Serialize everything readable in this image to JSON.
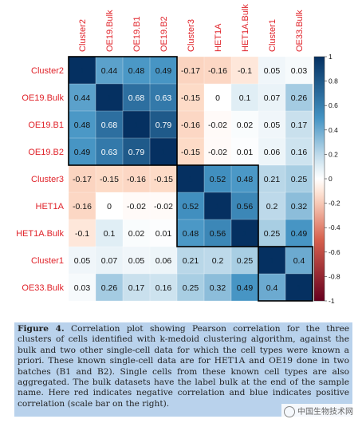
{
  "chart_data": {
    "type": "heatmap",
    "labels": [
      "Cluster2",
      "OE19.Bulk",
      "OE19.B1",
      "OE19.B2",
      "Cluster3",
      "HET1A",
      "HET1A.Bulk",
      "Cluster1",
      "OE33.Bulk"
    ],
    "matrix": [
      [
        1,
        0.44,
        0.48,
        0.49,
        -0.17,
        -0.16,
        -0.1,
        0.05,
        0.03
      ],
      [
        0.44,
        1,
        0.68,
        0.63,
        -0.15,
        0,
        0.1,
        0.07,
        0.26
      ],
      [
        0.48,
        0.68,
        1,
        0.79,
        -0.16,
        -0.02,
        0.02,
        0.05,
        0.17
      ],
      [
        0.49,
        0.63,
        0.79,
        1,
        -0.15,
        -0.02,
        0.01,
        0.06,
        0.16
      ],
      [
        -0.17,
        -0.15,
        -0.16,
        -0.15,
        1,
        0.52,
        0.48,
        0.21,
        0.25
      ],
      [
        -0.16,
        0,
        -0.02,
        -0.02,
        0.52,
        1,
        0.56,
        0.2,
        0.32
      ],
      [
        -0.1,
        0.1,
        0.02,
        0.01,
        0.48,
        0.56,
        1,
        0.25,
        0.49
      ],
      [
        0.05,
        0.07,
        0.05,
        0.06,
        0.21,
        0.2,
        0.25,
        1,
        0.4
      ],
      [
        0.03,
        0.26,
        0.17,
        0.16,
        0.25,
        0.32,
        0.49,
        0.4,
        1
      ]
    ],
    "cluster_boxes": [
      [
        0,
        3
      ],
      [
        4,
        6
      ],
      [
        7,
        8
      ]
    ],
    "colorbar": {
      "range": [
        -1,
        1
      ],
      "ticks": [
        "1",
        "0.8",
        "0.6",
        "0.4",
        "0.2",
        "0",
        "-0.2",
        "-0.4",
        "-0.6",
        "-0.8",
        "-1"
      ]
    },
    "colors": {
      "negative": "#67001f",
      "neutral": "#ffffff",
      "positive": "#053061",
      "label": "#e0232a"
    }
  },
  "caption": {
    "figure_label": "Figure 4.",
    "text": " Correlation plot showing Pearson correlation for the three clusters of cells identified with k-medoid clustering algorithm, against the bulk and two other single-cell data for which the cell types were known a priori. These known single-cell data are for HET1A and OE19 done in two batches (B1 and B2). Single cells from these known cell types are also aggregated. The bulk datasets have the label bulk at the end of the sample name. Here red indicates negative correlation and blue indicates positive correlation (scale bar on the right)."
  },
  "watermark": {
    "text": "中国生物技术网"
  }
}
